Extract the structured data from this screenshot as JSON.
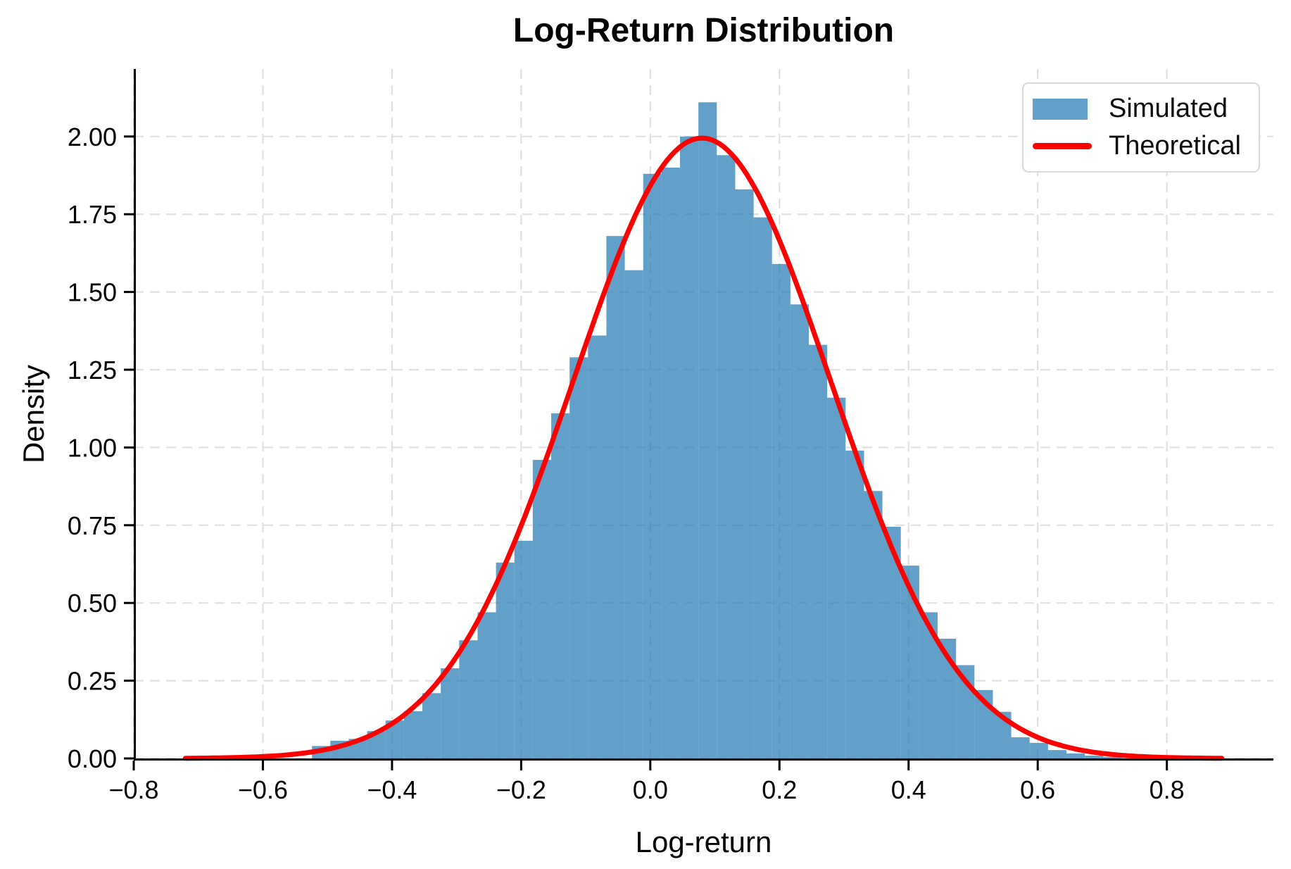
{
  "title": "Log-Return Distribution",
  "colors": {
    "histogram_fill": "rgba(31,119,180,0.7)",
    "curve_red": "#ff0000",
    "gridline": "#e0e0e0",
    "spine": "#000000",
    "text": "#000000",
    "legend_border": "#d8d8d8",
    "background": "#ffffff"
  },
  "legend": {
    "entries": [
      {
        "label": "Simulated",
        "swatch": "patch",
        "color": "rgba(31,119,180,0.7)"
      },
      {
        "label": "Theoretical",
        "swatch": "line",
        "color": "#ff0000"
      }
    ]
  },
  "chart_data": {
    "type": "bar",
    "subtype": "histogram-with-density-curve",
    "title": "Log-Return Distribution",
    "xlabel": "Log-return",
    "ylabel": "Density",
    "xlim": [
      -0.8,
      0.965
    ],
    "ylim": [
      0,
      2.217
    ],
    "grid": "dashed-both-axes",
    "legend_position": "upper-right",
    "x_ticks": [
      -0.8,
      -0.6,
      -0.4,
      -0.2,
      0.0,
      0.2,
      0.4,
      0.6,
      0.8
    ],
    "x_tick_labels": [
      "−0.8",
      "−0.6",
      "−0.4",
      "−0.2",
      "0.0",
      "0.2",
      "0.4",
      "0.6",
      "0.8"
    ],
    "y_ticks": [
      0.0,
      0.25,
      0.5,
      0.75,
      1.0,
      1.25,
      1.5,
      1.75,
      2.0
    ],
    "y_tick_labels": [
      "0.00",
      "0.25",
      "0.50",
      "0.75",
      "1.00",
      "1.25",
      "1.50",
      "1.75",
      "2.00"
    ],
    "series": [
      {
        "name": "Simulated",
        "kind": "histogram"
      },
      {
        "name": "Theoretical",
        "kind": "line"
      }
    ],
    "histogram": {
      "name": "Simulated",
      "color": "rgba(31,119,180,0.7)",
      "bin_start": -0.524,
      "bin_width": 0.0285,
      "densities": [
        0.04,
        0.057,
        0.063,
        0.088,
        0.122,
        0.152,
        0.21,
        0.29,
        0.38,
        0.47,
        0.63,
        0.7,
        0.96,
        1.11,
        1.29,
        1.36,
        1.68,
        1.57,
        1.88,
        1.9,
        2.0,
        2.11,
        1.94,
        1.83,
        1.74,
        1.59,
        1.46,
        1.33,
        1.16,
        0.99,
        0.86,
        0.745,
        0.62,
        0.47,
        0.385,
        0.3,
        0.22,
        0.15,
        0.068,
        0.05,
        0.027,
        0.016,
        0.009,
        0.005
      ]
    },
    "curve": {
      "name": "Theoretical",
      "distribution": "normal",
      "mean": 0.08,
      "sigma": 0.2,
      "peak_density": 1.995,
      "x_min": -0.72,
      "x_max": 0.885,
      "color": "#ff0000",
      "line_width": 7
    }
  }
}
